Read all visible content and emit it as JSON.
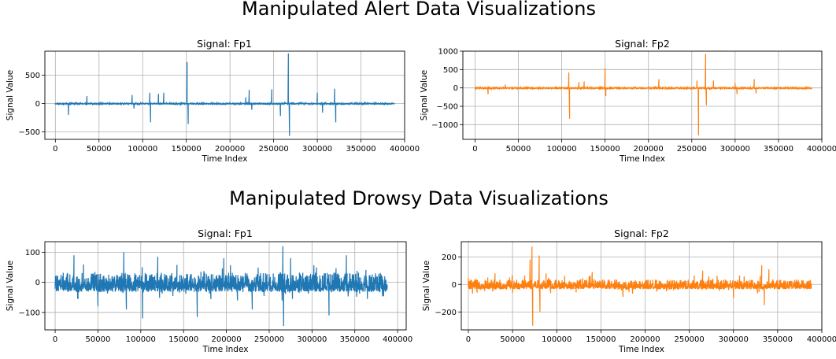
{
  "sections": [
    {
      "title": "Manipulated Alert Data Visualizations"
    },
    {
      "title": "Manipulated Drowsy Data Visualizations"
    }
  ],
  "chart_data": [
    {
      "type": "line",
      "title": "Signal: Fp1",
      "xlabel": "Time Index",
      "ylabel": "Signal Value",
      "color": "#1f77b4",
      "grid": true,
      "xlim": [
        -12000,
        400000
      ],
      "ylim": [
        -630,
        920
      ],
      "xticks": [
        0,
        50000,
        100000,
        150000,
        200000,
        250000,
        300000,
        350000,
        400000
      ],
      "yticks": [
        -500,
        0,
        500
      ],
      "n_points": 388000,
      "noise_amplitude": 12,
      "spikes": [
        {
          "x": 15000,
          "y": -200
        },
        {
          "x": 36000,
          "y": 130
        },
        {
          "x": 88000,
          "y": 150
        },
        {
          "x": 90000,
          "y": -90
        },
        {
          "x": 108000,
          "y": 190
        },
        {
          "x": 109000,
          "y": -330
        },
        {
          "x": 118000,
          "y": 170
        },
        {
          "x": 124000,
          "y": 190
        },
        {
          "x": 151000,
          "y": 730
        },
        {
          "x": 152000,
          "y": -360
        },
        {
          "x": 218000,
          "y": 110
        },
        {
          "x": 222000,
          "y": 240
        },
        {
          "x": 225000,
          "y": -110
        },
        {
          "x": 248000,
          "y": 250
        },
        {
          "x": 258000,
          "y": -220
        },
        {
          "x": 267000,
          "y": 880
        },
        {
          "x": 268000,
          "y": -570
        },
        {
          "x": 300000,
          "y": 190
        },
        {
          "x": 306000,
          "y": -160
        },
        {
          "x": 320000,
          "y": 260
        },
        {
          "x": 321000,
          "y": -330
        }
      ]
    },
    {
      "type": "line",
      "title": "Signal: Fp2",
      "xlabel": "Time Index",
      "ylabel": "Signal Value",
      "color": "#ff7f0e",
      "grid": true,
      "xlim": [
        -14000,
        400000
      ],
      "ylim": [
        -1400,
        1000
      ],
      "xticks": [
        0,
        50000,
        100000,
        150000,
        200000,
        250000,
        300000,
        350000,
        400000
      ],
      "yticks": [
        -1000,
        -500,
        0,
        500,
        1000
      ],
      "n_points": 388000,
      "noise_amplitude": 22,
      "spikes": [
        {
          "x": 15000,
          "y": -170
        },
        {
          "x": 35000,
          "y": 90
        },
        {
          "x": 108000,
          "y": 420
        },
        {
          "x": 109000,
          "y": -840
        },
        {
          "x": 120000,
          "y": 160
        },
        {
          "x": 126000,
          "y": 180
        },
        {
          "x": 150000,
          "y": 540
        },
        {
          "x": 151000,
          "y": -220
        },
        {
          "x": 212000,
          "y": 240
        },
        {
          "x": 256000,
          "y": 200
        },
        {
          "x": 258000,
          "y": -1290
        },
        {
          "x": 266000,
          "y": 930
        },
        {
          "x": 267000,
          "y": -470
        },
        {
          "x": 275000,
          "y": 200
        },
        {
          "x": 300000,
          "y": 130
        },
        {
          "x": 302000,
          "y": -170
        },
        {
          "x": 322000,
          "y": 240
        },
        {
          "x": 324000,
          "y": -150
        }
      ]
    },
    {
      "type": "line",
      "title": "Signal: Fp1",
      "xlabel": "Time Index",
      "ylabel": "Signal Value",
      "color": "#1f77b4",
      "grid": true,
      "xlim": [
        -12000,
        410000
      ],
      "ylim": [
        -158,
        135
      ],
      "xticks": [
        0,
        50000,
        100000,
        150000,
        200000,
        250000,
        300000,
        350000,
        400000
      ],
      "yticks": [
        -100,
        0,
        100
      ],
      "n_points": 388000,
      "noise_amplitude": 32,
      "spikes": [
        {
          "x": 22000,
          "y": 90
        },
        {
          "x": 50000,
          "y": -80
        },
        {
          "x": 80000,
          "y": 100
        },
        {
          "x": 83000,
          "y": -90
        },
        {
          "x": 102000,
          "y": -120
        },
        {
          "x": 120000,
          "y": 85
        },
        {
          "x": 166000,
          "y": -115
        },
        {
          "x": 197000,
          "y": 80
        },
        {
          "x": 230000,
          "y": -90
        },
        {
          "x": 266000,
          "y": 120
        },
        {
          "x": 267000,
          "y": -145
        },
        {
          "x": 275000,
          "y": 80
        },
        {
          "x": 320000,
          "y": -110
        },
        {
          "x": 340000,
          "y": 90
        }
      ]
    },
    {
      "type": "line",
      "title": "Signal: Fp2",
      "xlabel": "Time Index",
      "ylabel": "Signal Value",
      "color": "#ff7f0e",
      "grid": true,
      "xlim": [
        -8000,
        400000
      ],
      "ylim": [
        -330,
        310
      ],
      "xticks": [
        0,
        50000,
        100000,
        150000,
        200000,
        250000,
        300000,
        350000,
        400000
      ],
      "yticks": [
        -200,
        0,
        200
      ],
      "n_points": 388000,
      "noise_amplitude": 35,
      "spikes": [
        {
          "x": 10000,
          "y": -60
        },
        {
          "x": 30000,
          "y": 80
        },
        {
          "x": 70000,
          "y": 180
        },
        {
          "x": 72000,
          "y": 275
        },
        {
          "x": 73000,
          "y": -300
        },
        {
          "x": 80000,
          "y": 210
        },
        {
          "x": 81000,
          "y": -200
        },
        {
          "x": 88000,
          "y": 80
        },
        {
          "x": 140000,
          "y": 90
        },
        {
          "x": 175000,
          "y": -90
        },
        {
          "x": 265000,
          "y": 100
        },
        {
          "x": 300000,
          "y": -100
        },
        {
          "x": 332000,
          "y": 140
        },
        {
          "x": 335000,
          "y": -150
        },
        {
          "x": 340000,
          "y": 110
        }
      ]
    }
  ]
}
